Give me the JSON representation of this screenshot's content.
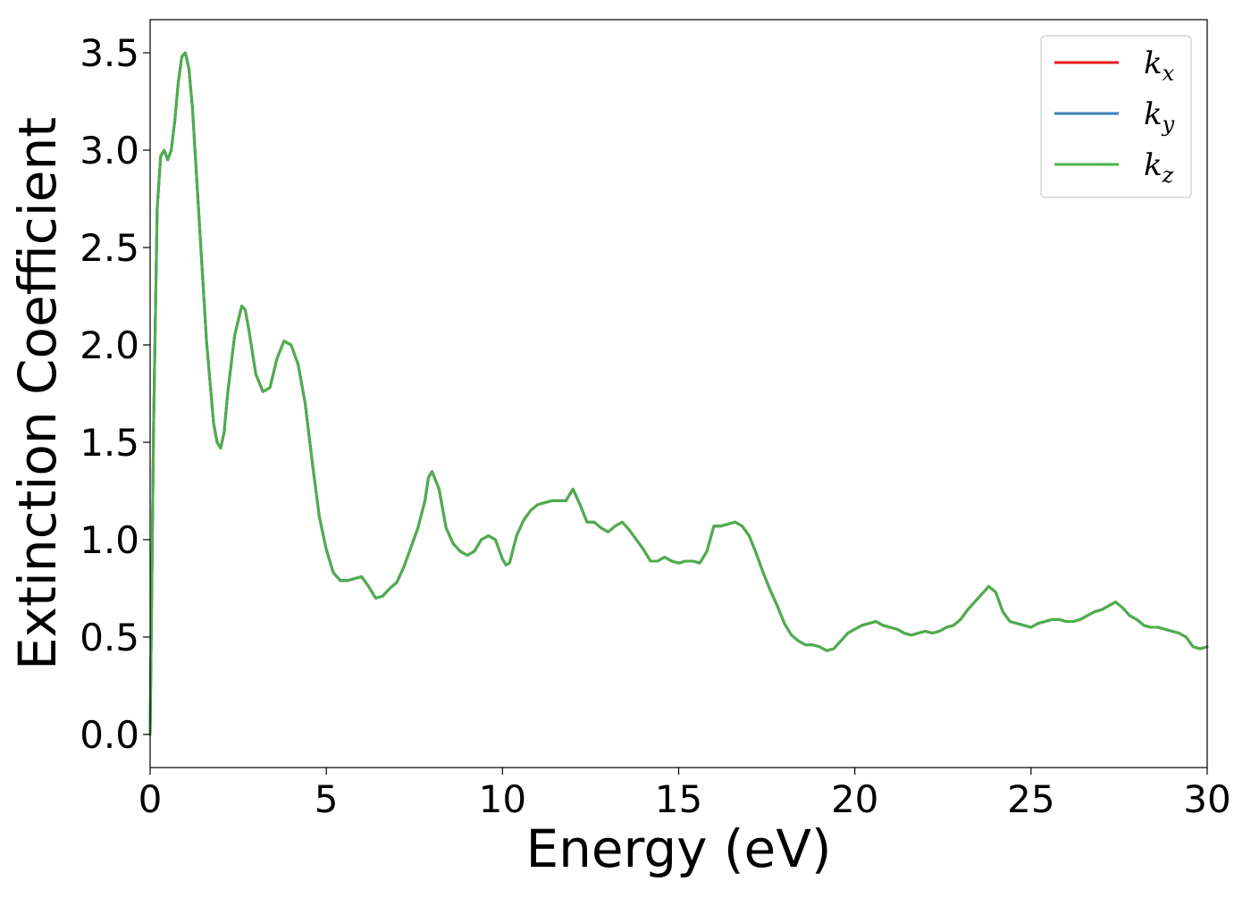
{
  "chart_data": {
    "type": "line",
    "title": "",
    "xlabel": "Energy (eV)",
    "ylabel": "Extinction Coefficient",
    "xlim": [
      0,
      30
    ],
    "ylim": [
      -0.17,
      3.67
    ],
    "xticks": [
      0,
      5,
      10,
      15,
      20,
      25,
      30
    ],
    "yticks": [
      0.0,
      0.5,
      1.0,
      1.5,
      2.0,
      2.5,
      3.0,
      3.5
    ],
    "grid": false,
    "legend_position": "top-right",
    "series": [
      {
        "name": "k",
        "subscript": "x",
        "color": "#e41a1c",
        "x": [
          0,
          0.1,
          0.2,
          0.3,
          0.4,
          0.5,
          0.6,
          0.7,
          0.8,
          0.9,
          1.0,
          1.1,
          1.2,
          1.4,
          1.6,
          1.8,
          1.9,
          2.0,
          2.1,
          2.2,
          2.4,
          2.6,
          2.7,
          2.8,
          3.0,
          3.2,
          3.4,
          3.6,
          3.8,
          4.0,
          4.2,
          4.4,
          4.6,
          4.8,
          5.0,
          5.2,
          5.4,
          5.6,
          5.8,
          6.0,
          6.2,
          6.4,
          6.6,
          6.8,
          7.0,
          7.2,
          7.4,
          7.6,
          7.8,
          7.9,
          8.0,
          8.2,
          8.4,
          8.6,
          8.8,
          9.0,
          9.2,
          9.4,
          9.6,
          9.8,
          10.0,
          10.1,
          10.2,
          10.4,
          10.6,
          10.8,
          11.0,
          11.2,
          11.4,
          11.6,
          11.8,
          12.0,
          12.2,
          12.4,
          12.6,
          12.8,
          13.0,
          13.2,
          13.4,
          13.6,
          13.8,
          14.0,
          14.2,
          14.4,
          14.6,
          14.8,
          15.0,
          15.2,
          15.4,
          15.6,
          15.8,
          16.0,
          16.2,
          16.4,
          16.6,
          16.8,
          17.0,
          17.2,
          17.4,
          17.6,
          17.8,
          18.0,
          18.2,
          18.4,
          18.6,
          18.8,
          19.0,
          19.2,
          19.4,
          19.6,
          19.8,
          20.0,
          20.2,
          20.4,
          20.6,
          20.8,
          21.0,
          21.2,
          21.4,
          21.6,
          21.8,
          22.0,
          22.2,
          22.4,
          22.6,
          22.8,
          23.0,
          23.2,
          23.4,
          23.6,
          23.8,
          24.0,
          24.2,
          24.4,
          24.6,
          24.8,
          25.0,
          25.2,
          25.4,
          25.6,
          25.8,
          26.0,
          26.2,
          26.4,
          26.6,
          26.8,
          27.0,
          27.2,
          27.4,
          27.6,
          27.8,
          28.0,
          28.2,
          28.4,
          28.6,
          28.8,
          29.0,
          29.2,
          29.4,
          29.6,
          29.8,
          30.0
        ],
        "y": [
          0.0,
          1.6,
          2.7,
          2.97,
          3.0,
          2.95,
          3.0,
          3.15,
          3.35,
          3.48,
          3.5,
          3.42,
          3.22,
          2.62,
          2.02,
          1.6,
          1.5,
          1.47,
          1.55,
          1.75,
          2.05,
          2.2,
          2.18,
          2.08,
          1.85,
          1.76,
          1.78,
          1.93,
          2.02,
          2.0,
          1.9,
          1.7,
          1.4,
          1.12,
          0.95,
          0.83,
          0.79,
          0.79,
          0.8,
          0.81,
          0.76,
          0.7,
          0.71,
          0.75,
          0.78,
          0.86,
          0.96,
          1.06,
          1.2,
          1.32,
          1.35,
          1.26,
          1.06,
          0.98,
          0.94,
          0.92,
          0.94,
          1.0,
          1.02,
          1.0,
          0.9,
          0.87,
          0.88,
          1.02,
          1.1,
          1.15,
          1.18,
          1.19,
          1.2,
          1.2,
          1.2,
          1.26,
          1.18,
          1.09,
          1.09,
          1.06,
          1.04,
          1.07,
          1.09,
          1.05,
          1.0,
          0.95,
          0.89,
          0.89,
          0.91,
          0.89,
          0.88,
          0.89,
          0.89,
          0.88,
          0.94,
          1.07,
          1.07,
          1.08,
          1.09,
          1.07,
          1.02,
          0.93,
          0.83,
          0.74,
          0.66,
          0.57,
          0.51,
          0.48,
          0.46,
          0.46,
          0.45,
          0.43,
          0.44,
          0.48,
          0.52,
          0.54,
          0.56,
          0.57,
          0.58,
          0.56,
          0.55,
          0.54,
          0.52,
          0.51,
          0.52,
          0.53,
          0.52,
          0.53,
          0.55,
          0.56,
          0.59,
          0.64,
          0.68,
          0.72,
          0.76,
          0.73,
          0.63,
          0.58,
          0.57,
          0.56,
          0.55,
          0.57,
          0.58,
          0.59,
          0.59,
          0.58,
          0.58,
          0.59,
          0.61,
          0.63,
          0.64,
          0.66,
          0.68,
          0.65,
          0.61,
          0.59,
          0.56,
          0.55,
          0.55,
          0.54,
          0.53,
          0.52,
          0.5,
          0.45,
          0.44,
          0.45
        ]
      },
      {
        "name": "k",
        "subscript": "y",
        "color": "#377eb8",
        "x": [
          0,
          0.1,
          0.2,
          0.3,
          0.4,
          0.5,
          0.6,
          0.7,
          0.8,
          0.9,
          1.0,
          1.1,
          1.2,
          1.4,
          1.6,
          1.8,
          1.9,
          2.0,
          2.1,
          2.2,
          2.4,
          2.6,
          2.7,
          2.8,
          3.0,
          3.2,
          3.4,
          3.6,
          3.8,
          4.0,
          4.2,
          4.4,
          4.6,
          4.8,
          5.0,
          5.2,
          5.4,
          5.6,
          5.8,
          6.0,
          6.2,
          6.4,
          6.6,
          6.8,
          7.0,
          7.2,
          7.4,
          7.6,
          7.8,
          7.9,
          8.0,
          8.2,
          8.4,
          8.6,
          8.8,
          9.0,
          9.2,
          9.4,
          9.6,
          9.8,
          10.0,
          10.1,
          10.2,
          10.4,
          10.6,
          10.8,
          11.0,
          11.2,
          11.4,
          11.6,
          11.8,
          12.0,
          12.2,
          12.4,
          12.6,
          12.8,
          13.0,
          13.2,
          13.4,
          13.6,
          13.8,
          14.0,
          14.2,
          14.4,
          14.6,
          14.8,
          15.0,
          15.2,
          15.4,
          15.6,
          15.8,
          16.0,
          16.2,
          16.4,
          16.6,
          16.8,
          17.0,
          17.2,
          17.4,
          17.6,
          17.8,
          18.0,
          18.2,
          18.4,
          18.6,
          18.8,
          19.0,
          19.2,
          19.4,
          19.6,
          19.8,
          20.0,
          20.2,
          20.4,
          20.6,
          20.8,
          21.0,
          21.2,
          21.4,
          21.6,
          21.8,
          22.0,
          22.2,
          22.4,
          22.6,
          22.8,
          23.0,
          23.2,
          23.4,
          23.6,
          23.8,
          24.0,
          24.2,
          24.4,
          24.6,
          24.8,
          25.0,
          25.2,
          25.4,
          25.6,
          25.8,
          26.0,
          26.2,
          26.4,
          26.6,
          26.8,
          27.0,
          27.2,
          27.4,
          27.6,
          27.8,
          28.0,
          28.2,
          28.4,
          28.6,
          28.8,
          29.0,
          29.2,
          29.4,
          29.6,
          29.8,
          30.0
        ],
        "y": [
          0.0,
          1.6,
          2.7,
          2.97,
          3.0,
          2.95,
          3.0,
          3.15,
          3.35,
          3.48,
          3.5,
          3.42,
          3.22,
          2.62,
          2.02,
          1.6,
          1.5,
          1.47,
          1.55,
          1.75,
          2.05,
          2.2,
          2.18,
          2.08,
          1.85,
          1.76,
          1.78,
          1.93,
          2.02,
          2.0,
          1.9,
          1.7,
          1.4,
          1.12,
          0.95,
          0.83,
          0.79,
          0.79,
          0.8,
          0.81,
          0.76,
          0.7,
          0.71,
          0.75,
          0.78,
          0.86,
          0.96,
          1.06,
          1.2,
          1.32,
          1.35,
          1.26,
          1.06,
          0.98,
          0.94,
          0.92,
          0.94,
          1.0,
          1.02,
          1.0,
          0.9,
          0.87,
          0.88,
          1.02,
          1.1,
          1.15,
          1.18,
          1.19,
          1.2,
          1.2,
          1.2,
          1.26,
          1.18,
          1.09,
          1.09,
          1.06,
          1.04,
          1.07,
          1.09,
          1.05,
          1.0,
          0.95,
          0.89,
          0.89,
          0.91,
          0.89,
          0.88,
          0.89,
          0.89,
          0.88,
          0.94,
          1.07,
          1.07,
          1.08,
          1.09,
          1.07,
          1.02,
          0.93,
          0.83,
          0.74,
          0.66,
          0.57,
          0.51,
          0.48,
          0.46,
          0.46,
          0.45,
          0.43,
          0.44,
          0.48,
          0.52,
          0.54,
          0.56,
          0.57,
          0.58,
          0.56,
          0.55,
          0.54,
          0.52,
          0.51,
          0.52,
          0.53,
          0.52,
          0.53,
          0.55,
          0.56,
          0.59,
          0.64,
          0.68,
          0.72,
          0.76,
          0.73,
          0.63,
          0.58,
          0.57,
          0.56,
          0.55,
          0.57,
          0.58,
          0.59,
          0.59,
          0.58,
          0.58,
          0.59,
          0.61,
          0.63,
          0.64,
          0.66,
          0.68,
          0.65,
          0.61,
          0.59,
          0.56,
          0.55,
          0.55,
          0.54,
          0.53,
          0.52,
          0.5,
          0.45,
          0.44,
          0.45
        ]
      },
      {
        "name": "k",
        "subscript": "z",
        "color": "#4daf4a",
        "x": [
          0,
          0.1,
          0.2,
          0.3,
          0.4,
          0.5,
          0.6,
          0.7,
          0.8,
          0.9,
          1.0,
          1.1,
          1.2,
          1.4,
          1.6,
          1.8,
          1.9,
          2.0,
          2.1,
          2.2,
          2.4,
          2.6,
          2.7,
          2.8,
          3.0,
          3.2,
          3.4,
          3.6,
          3.8,
          4.0,
          4.2,
          4.4,
          4.6,
          4.8,
          5.0,
          5.2,
          5.4,
          5.6,
          5.8,
          6.0,
          6.2,
          6.4,
          6.6,
          6.8,
          7.0,
          7.2,
          7.4,
          7.6,
          7.8,
          7.9,
          8.0,
          8.2,
          8.4,
          8.6,
          8.8,
          9.0,
          9.2,
          9.4,
          9.6,
          9.8,
          10.0,
          10.1,
          10.2,
          10.4,
          10.6,
          10.8,
          11.0,
          11.2,
          11.4,
          11.6,
          11.8,
          12.0,
          12.2,
          12.4,
          12.6,
          12.8,
          13.0,
          13.2,
          13.4,
          13.6,
          13.8,
          14.0,
          14.2,
          14.4,
          14.6,
          14.8,
          15.0,
          15.2,
          15.4,
          15.6,
          15.8,
          16.0,
          16.2,
          16.4,
          16.6,
          16.8,
          17.0,
          17.2,
          17.4,
          17.6,
          17.8,
          18.0,
          18.2,
          18.4,
          18.6,
          18.8,
          19.0,
          19.2,
          19.4,
          19.6,
          19.8,
          20.0,
          20.2,
          20.4,
          20.6,
          20.8,
          21.0,
          21.2,
          21.4,
          21.6,
          21.8,
          22.0,
          22.2,
          22.4,
          22.6,
          22.8,
          23.0,
          23.2,
          23.4,
          23.6,
          23.8,
          24.0,
          24.2,
          24.4,
          24.6,
          24.8,
          25.0,
          25.2,
          25.4,
          25.6,
          25.8,
          26.0,
          26.2,
          26.4,
          26.6,
          26.8,
          27.0,
          27.2,
          27.4,
          27.6,
          27.8,
          28.0,
          28.2,
          28.4,
          28.6,
          28.8,
          29.0,
          29.2,
          29.4,
          29.6,
          29.8,
          30.0
        ],
        "y": [
          0.0,
          1.6,
          2.7,
          2.97,
          3.0,
          2.95,
          3.0,
          3.15,
          3.35,
          3.48,
          3.5,
          3.42,
          3.22,
          2.62,
          2.02,
          1.6,
          1.5,
          1.47,
          1.55,
          1.75,
          2.05,
          2.2,
          2.18,
          2.08,
          1.85,
          1.76,
          1.78,
          1.93,
          2.02,
          2.0,
          1.9,
          1.7,
          1.4,
          1.12,
          0.95,
          0.83,
          0.79,
          0.79,
          0.8,
          0.81,
          0.76,
          0.7,
          0.71,
          0.75,
          0.78,
          0.86,
          0.96,
          1.06,
          1.2,
          1.32,
          1.35,
          1.26,
          1.06,
          0.98,
          0.94,
          0.92,
          0.94,
          1.0,
          1.02,
          1.0,
          0.9,
          0.87,
          0.88,
          1.02,
          1.1,
          1.15,
          1.18,
          1.19,
          1.2,
          1.2,
          1.2,
          1.26,
          1.18,
          1.09,
          1.09,
          1.06,
          1.04,
          1.07,
          1.09,
          1.05,
          1.0,
          0.95,
          0.89,
          0.89,
          0.91,
          0.89,
          0.88,
          0.89,
          0.89,
          0.88,
          0.94,
          1.07,
          1.07,
          1.08,
          1.09,
          1.07,
          1.02,
          0.93,
          0.83,
          0.74,
          0.66,
          0.57,
          0.51,
          0.48,
          0.46,
          0.46,
          0.45,
          0.43,
          0.44,
          0.48,
          0.52,
          0.54,
          0.56,
          0.57,
          0.58,
          0.56,
          0.55,
          0.54,
          0.52,
          0.51,
          0.52,
          0.53,
          0.52,
          0.53,
          0.55,
          0.56,
          0.59,
          0.64,
          0.68,
          0.72,
          0.76,
          0.73,
          0.63,
          0.58,
          0.57,
          0.56,
          0.55,
          0.57,
          0.58,
          0.59,
          0.59,
          0.58,
          0.58,
          0.59,
          0.61,
          0.63,
          0.64,
          0.66,
          0.68,
          0.65,
          0.61,
          0.59,
          0.56,
          0.55,
          0.55,
          0.54,
          0.53,
          0.52,
          0.5,
          0.45,
          0.44,
          0.45
        ]
      }
    ]
  }
}
